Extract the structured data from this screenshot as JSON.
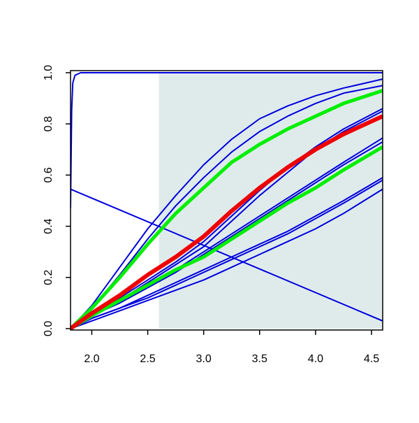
{
  "chart_data": {
    "type": "line",
    "x": [
      1.81,
      2.0,
      2.25,
      2.5,
      2.75,
      3.0,
      3.25,
      3.5,
      3.75,
      4.0,
      4.25,
      4.6
    ],
    "xlim": [
      1.81,
      4.6
    ],
    "ylim": [
      0,
      1
    ],
    "xticks": [
      {
        "value": 2.0,
        "label": "2.0"
      },
      {
        "value": 2.5,
        "label": "2.5"
      },
      {
        "value": 3.0,
        "label": "3.0"
      },
      {
        "value": 3.5,
        "label": "3.5"
      },
      {
        "value": 4.0,
        "label": "4.0"
      },
      {
        "value": 4.5,
        "label": "4.5"
      }
    ],
    "yticks": [
      {
        "value": 0.0,
        "label": "0.0"
      },
      {
        "value": 0.2,
        "label": "0.2"
      },
      {
        "value": 0.4,
        "label": "0.4"
      },
      {
        "value": 0.6,
        "label": "0.6"
      },
      {
        "value": 0.8,
        "label": "0.8"
      },
      {
        "value": 1.0,
        "label": "1.0"
      }
    ],
    "highlight_xrange": [
      2.6,
      4.6
    ],
    "highlight_color": "#dfebeb",
    "series": [
      {
        "color": "#0000dd",
        "linewidth": 2,
        "x": [
          1.81,
          1.82,
          1.83,
          1.85,
          1.9,
          2.0,
          4.6
        ],
        "values": [
          0.47,
          0.85,
          0.96,
          0.99,
          1.0,
          1.0,
          1.0
        ]
      },
      {
        "color": "#0000dd",
        "linewidth": 2,
        "x": [
          1.81,
          4.6
        ],
        "values": [
          0.545,
          0.03
        ]
      },
      {
        "color": "#0000dd",
        "linewidth": 2,
        "values": [
          0,
          0.09,
          0.24,
          0.39,
          0.52,
          0.64,
          0.74,
          0.82,
          0.87,
          0.91,
          0.94,
          0.975
        ]
      },
      {
        "color": "#0000dd",
        "linewidth": 2,
        "values": [
          0,
          0.08,
          0.21,
          0.35,
          0.48,
          0.59,
          0.69,
          0.77,
          0.83,
          0.88,
          0.92,
          0.95
        ]
      },
      {
        "color": "#0000dd",
        "linewidth": 2,
        "values": [
          0,
          0.05,
          0.12,
          0.19,
          0.26,
          0.34,
          0.44,
          0.54,
          0.63,
          0.71,
          0.78,
          0.86
        ]
      },
      {
        "color": "#0000dd",
        "linewidth": 2,
        "values": [
          0,
          0.05,
          0.11,
          0.18,
          0.25,
          0.32,
          0.42,
          0.52,
          0.61,
          0.7,
          0.77,
          0.85
        ]
      },
      {
        "color": "#0000dd",
        "linewidth": 2,
        "values": [
          0,
          0.05,
          0.11,
          0.17,
          0.23,
          0.3,
          0.37,
          0.44,
          0.51,
          0.58,
          0.65,
          0.745
        ]
      },
      {
        "color": "#0000dd",
        "linewidth": 2,
        "values": [
          0,
          0.05,
          0.1,
          0.16,
          0.22,
          0.29,
          0.36,
          0.43,
          0.5,
          0.57,
          0.64,
          0.73
        ]
      },
      {
        "color": "#0000dd",
        "linewidth": 2,
        "values": [
          0,
          0.04,
          0.08,
          0.13,
          0.18,
          0.23,
          0.28,
          0.33,
          0.38,
          0.44,
          0.5,
          0.59
        ]
      },
      {
        "color": "#0000dd",
        "linewidth": 2,
        "values": [
          0,
          0.04,
          0.08,
          0.12,
          0.17,
          0.22,
          0.27,
          0.32,
          0.37,
          0.43,
          0.49,
          0.58
        ]
      },
      {
        "color": "#0000dd",
        "linewidth": 2,
        "values": [
          0,
          0.03,
          0.07,
          0.11,
          0.15,
          0.19,
          0.24,
          0.29,
          0.34,
          0.39,
          0.45,
          0.545
        ]
      },
      {
        "color": "#00ee00",
        "linewidth": 5,
        "values": [
          0,
          0.08,
          0.2,
          0.33,
          0.45,
          0.55,
          0.65,
          0.72,
          0.78,
          0.83,
          0.88,
          0.93
        ]
      },
      {
        "color": "#00ee00",
        "linewidth": 5,
        "values": [
          0,
          0.05,
          0.11,
          0.17,
          0.23,
          0.28,
          0.35,
          0.42,
          0.49,
          0.55,
          0.62,
          0.71
        ]
      },
      {
        "color": "#ee0000",
        "linewidth": 6,
        "values": [
          0,
          0.06,
          0.13,
          0.21,
          0.28,
          0.36,
          0.46,
          0.55,
          0.63,
          0.7,
          0.76,
          0.83
        ]
      }
    ]
  }
}
